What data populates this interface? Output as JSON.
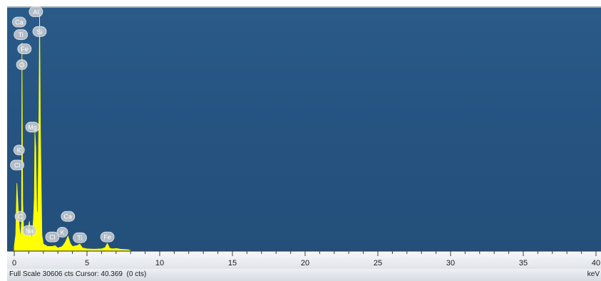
{
  "window": {
    "footer_status": "Full Scale 30606 cts Cursor: 40.369  (0 cts)",
    "axis_unit": "keV"
  },
  "colors": {
    "plot_background": "#25527f",
    "spectrum_fill": "#ffff00",
    "label_badge": "#c9ced4",
    "label_badge_stroke": "#e6e9ec"
  },
  "chart_data": {
    "type": "area",
    "title": "",
    "xlabel": "keV",
    "ylabel": "",
    "full_scale_cts": 30606,
    "cursor_kev": 40.369,
    "cursor_cts": 0,
    "xlim": [
      0,
      40
    ],
    "ylim": [
      0,
      30606
    ],
    "xticks": [
      0,
      5,
      10,
      15,
      20,
      25,
      30,
      35,
      40
    ],
    "grid": false,
    "series": [
      {
        "x": [
          0.0,
          0.1,
          0.18,
          0.28,
          0.35,
          0.42,
          0.5,
          0.53,
          0.58,
          0.65,
          0.75,
          0.85,
          0.95,
          1.04,
          1.1,
          1.2,
          1.26,
          1.32,
          1.38,
          1.42,
          1.48,
          1.55,
          1.62,
          1.7,
          1.74,
          1.8,
          1.9,
          2.0,
          2.3,
          2.62,
          2.8,
          3.0,
          3.3,
          3.5,
          3.69,
          3.85,
          4.0,
          4.3,
          4.51,
          4.7,
          5.0,
          5.5,
          6.0,
          6.25,
          6.4,
          6.55,
          6.7,
          7.06,
          7.3,
          7.8,
          8.0
        ],
        "y": [
          500,
          2000,
          8500,
          5000,
          3000,
          1500,
          3500,
          26300,
          6000,
          2400,
          1800,
          2200,
          2600,
          3700,
          2200,
          1500,
          2400,
          4000,
          6700,
          15000,
          13000,
          5000,
          4500,
          18000,
          30606,
          15000,
          2000,
          800,
          500,
          500,
          600,
          300,
          500,
          1000,
          1800,
          900,
          500,
          600,
          800,
          300,
          200,
          150,
          200,
          350,
          900,
          300,
          200,
          250,
          150,
          100,
          0
        ]
      }
    ],
    "peak_labels": [
      {
        "text": "Ca",
        "x": 0.34,
        "cts": 28900
      },
      {
        "text": "Al",
        "x": 1.49,
        "cts": 30200
      },
      {
        "text": "Ti",
        "x": 0.45,
        "cts": 27300
      },
      {
        "text": "Si",
        "x": 1.74,
        "cts": 27700
      },
      {
        "text": "Fe",
        "x": 0.7,
        "cts": 25500
      },
      {
        "text": "O",
        "x": 0.52,
        "cts": 23500
      },
      {
        "text": "Mg",
        "x": 1.25,
        "cts": 15600
      },
      {
        "text": "K",
        "x": 0.33,
        "cts": 12700
      },
      {
        "text": "Cl",
        "x": 0.2,
        "cts": 10800
      },
      {
        "text": "C",
        "x": 0.42,
        "cts": 4300
      },
      {
        "text": "Ca",
        "x": 3.69,
        "cts": 4300
      },
      {
        "text": "Na",
        "x": 1.04,
        "cts": 2500
      },
      {
        "text": "Cl",
        "x": 2.62,
        "cts": 1700
      },
      {
        "text": "K",
        "x": 3.31,
        "cts": 2300
      },
      {
        "text": "Ti",
        "x": 4.51,
        "cts": 1600
      },
      {
        "text": "Fe",
        "x": 6.4,
        "cts": 1700
      }
    ]
  }
}
